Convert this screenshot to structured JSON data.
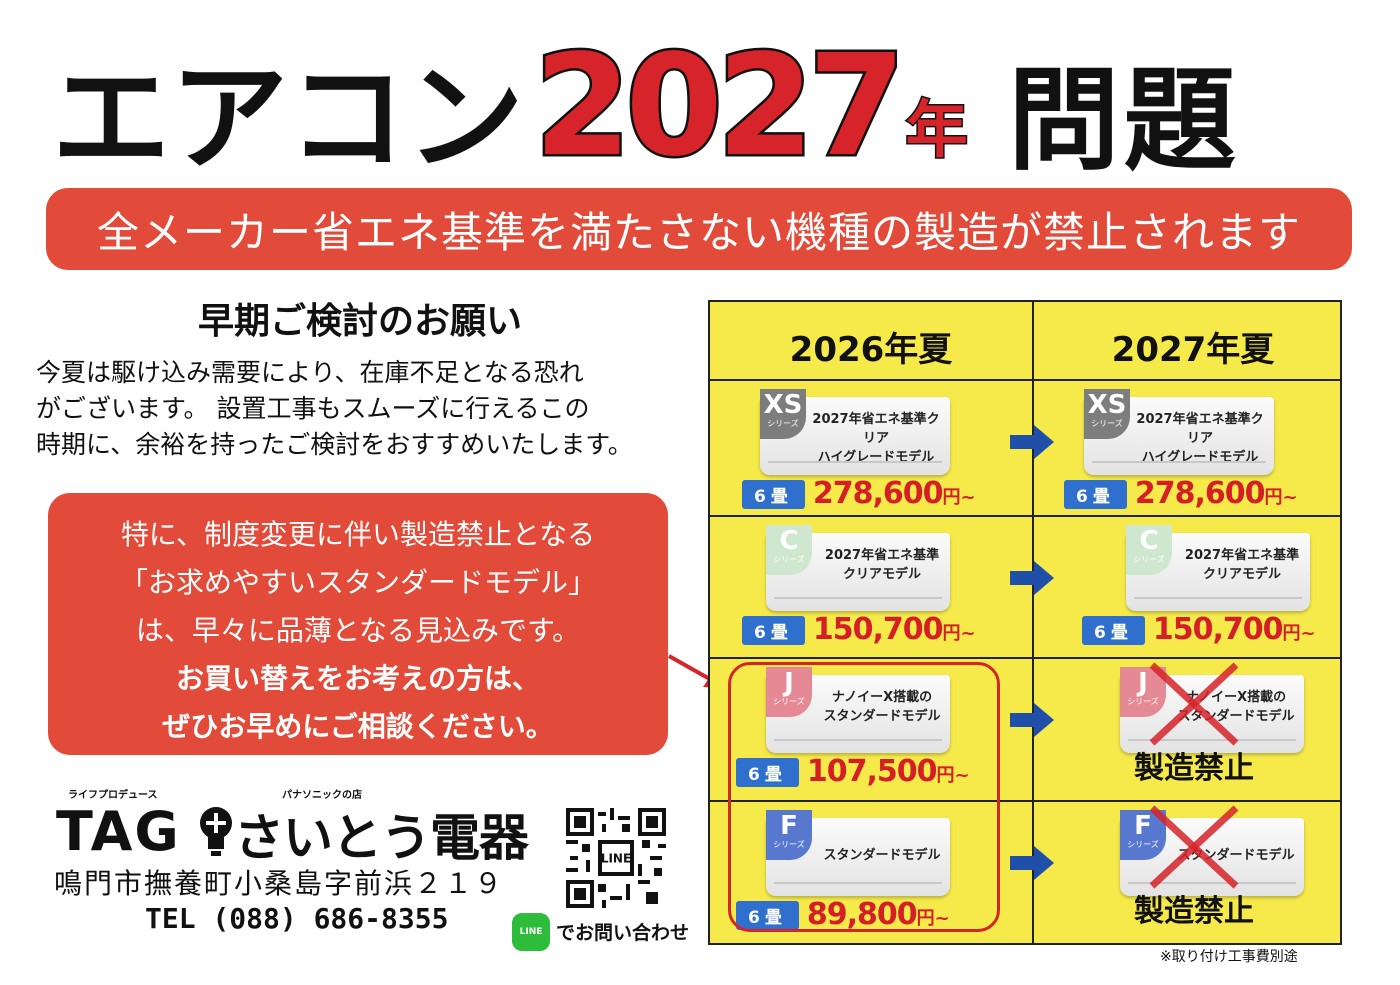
{
  "title": {
    "prefix": "エアコン",
    "year": "2027",
    "nen": "年",
    "suffix": "問題"
  },
  "banner": "全メーカー省エネ基準を満たさない機種の製造が禁止されます",
  "request": {
    "heading": "早期ご検討のお願い",
    "lines": [
      "今夏は駆け込み需要により、在庫不足となる恐れ",
      "がございます。 設置工事もスムーズに行えるこの",
      "時期に、余裕を持ったご検討をおすすめいたします。"
    ]
  },
  "callout": {
    "lines": [
      "特に、制度変更に伴い製造禁止となる",
      "「お求めやすいスタンダードモデル」",
      "は、早々に品薄となる見込みです。"
    ],
    "bold_lines": [
      "お買い替えをお考えの方は、",
      "ぜひお早めにご相談ください。"
    ]
  },
  "table": {
    "columns": [
      "2026年夏",
      "2027年夏"
    ],
    "rows": [
      {
        "code": "XS",
        "series": "シリーズ",
        "desc1": "2027年省エネ基準クリア",
        "desc2": "ハイグレードモデル",
        "room": "6畳",
        "price_2026": "278,600",
        "price_2027": "278,600",
        "yen": "円~",
        "stopped": "",
        "badge_color": "#7d7d7d"
      },
      {
        "code": "C",
        "series": "シリーズ",
        "desc1": "2027年省エネ基準",
        "desc2": "クリアモデル",
        "room": "6畳",
        "price_2026": "150,700",
        "price_2027": "150,700",
        "yen": "円~",
        "stopped": "",
        "badge_color": "#cfe7cf"
      },
      {
        "code": "J",
        "series": "シリーズ",
        "desc1": "ナノイーX搭載の",
        "desc2": "スタンダードモデル",
        "room": "6畳",
        "price_2026": "107,500",
        "yen": "円~",
        "stopped": "製造禁止",
        "badge_color": "#e58a95"
      },
      {
        "code": "F",
        "series": "シリーズ",
        "desc1": "スタンダードモデル",
        "desc2": "",
        "room": "6畳",
        "price_2026": "89,800",
        "yen": "円~",
        "stopped": "製造禁止",
        "badge_color": "#5877cf"
      }
    ],
    "footnote": "※取り付け工事費別途"
  },
  "store": {
    "tagline_left": "ライフプロデュース",
    "tagline_right": "パナソニックの店",
    "logo_tag": "TAG",
    "name": "さいとう電器",
    "address": "鳴門市撫養町小桑島字前浜２１９",
    "tel": "TEL (088) 686-8355"
  },
  "contact": {
    "qr_label": "LINE",
    "line_icon": "LINE",
    "text": "でお問い合わせ"
  },
  "colors": {
    "accent_red": "#e24a39",
    "price_red": "#d51f27",
    "table_yellow": "#f6ea4b",
    "arrow_blue": "#1f4fa8",
    "tatami_blue": "#2f6fce"
  }
}
